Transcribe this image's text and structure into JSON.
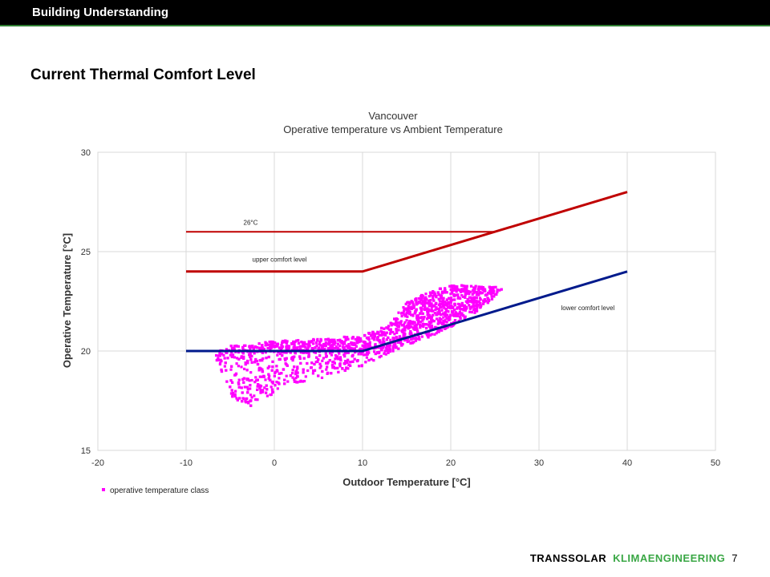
{
  "header": {
    "title": "Building Understanding"
  },
  "slide": {
    "heading": "Current Thermal Comfort Level"
  },
  "footer": {
    "brand": "TRANSSOLAR",
    "brand_secondary": "KLIMAENGINEERING",
    "page_number": "7"
  },
  "colors": {
    "upper": "#c00000",
    "lower": "#001a8c",
    "scatter": "#ff00ff",
    "grid": "#d9d9d9",
    "footer_green": "#3aa745"
  },
  "chart_data": {
    "type": "scatter",
    "title": "Vancouver",
    "subtitle": "Operative temperature vs Ambient Temperature",
    "xlabel": "Outdoor Temperature [°C]",
    "ylabel": "Operative Temperature [°C]",
    "xlim": [
      -20,
      50
    ],
    "ylim": [
      15,
      30
    ],
    "xticks": [
      -20,
      -10,
      0,
      10,
      20,
      30,
      40,
      50
    ],
    "yticks": [
      15,
      20,
      25,
      30
    ],
    "grid": true,
    "legend_position": "bottom-left",
    "lines": [
      {
        "name": "26°C",
        "color": "#c00000",
        "width": 2,
        "points": [
          [
            -10,
            26
          ],
          [
            25,
            26
          ]
        ]
      },
      {
        "name": "upper comfort level",
        "color": "#c00000",
        "width": 3,
        "points": [
          [
            -10,
            24
          ],
          [
            10,
            24
          ],
          [
            40,
            28
          ]
        ]
      },
      {
        "name": "lower comfort level",
        "color": "#001a8c",
        "width": 3,
        "points": [
          [
            -10,
            20
          ],
          [
            10,
            20
          ],
          [
            40,
            24
          ]
        ]
      }
    ],
    "annotations": [
      {
        "text": "26°C",
        "x": -3.5,
        "y": 26.35
      },
      {
        "text": "upper comfort level",
        "x": -2.5,
        "y": 24.5
      },
      {
        "text": "lower comfort level",
        "x": 32.5,
        "y": 22.05
      }
    ],
    "series": [
      {
        "name": "operative temperature class",
        "color": "#ff00ff",
        "envelope": [
          [
            -7,
            19.8
          ],
          [
            -5,
            20.3
          ],
          [
            -3,
            20.3
          ],
          [
            0,
            20.5
          ],
          [
            5,
            20.6
          ],
          [
            10,
            20.8
          ],
          [
            13,
            21.3
          ],
          [
            15,
            22.5
          ],
          [
            17,
            22.9
          ],
          [
            20,
            23.3
          ],
          [
            23,
            23.3
          ],
          [
            26,
            23.2
          ],
          [
            24,
            22.3
          ],
          [
            22,
            21.7
          ],
          [
            20,
            21.2
          ],
          [
            17,
            20.6
          ],
          [
            15,
            20.3
          ],
          [
            13,
            19.9
          ],
          [
            11,
            19.4
          ],
          [
            9,
            19.1
          ],
          [
            5,
            18.6
          ],
          [
            2,
            18.3
          ],
          [
            0,
            17.8
          ],
          [
            -1,
            17.7
          ],
          [
            -3,
            17.1
          ],
          [
            -5,
            17.8
          ],
          [
            -6,
            19.0
          ]
        ]
      }
    ]
  }
}
